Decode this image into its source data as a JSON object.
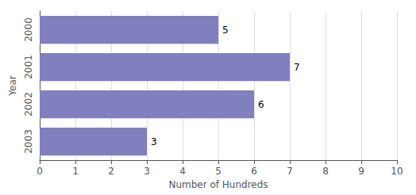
{
  "chart_data": {
    "type": "bar",
    "orientation": "horizontal",
    "categories": [
      "2000",
      "2001",
      "2002",
      "2003"
    ],
    "values": [
      5,
      7,
      6,
      3
    ],
    "color": "#8080be",
    "xlabel": "Number of Hundreds",
    "ylabel": "Year",
    "xlim": [
      0,
      10
    ],
    "xticks": [
      0,
      1,
      2,
      3,
      4,
      5,
      6,
      7,
      8,
      9,
      10
    ],
    "grid": true,
    "data_labels": true
  }
}
